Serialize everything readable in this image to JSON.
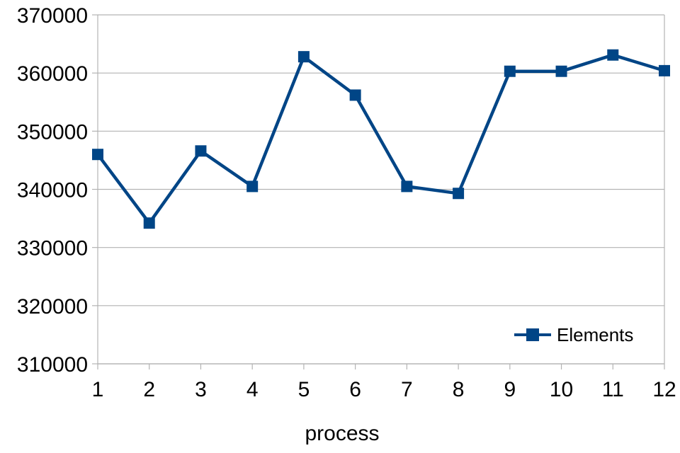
{
  "chart_data": {
    "type": "line",
    "title": "",
    "xlabel": "process",
    "ylabel": "",
    "categories": [
      "1",
      "2",
      "3",
      "4",
      "5",
      "6",
      "7",
      "8",
      "9",
      "10",
      "11",
      "12"
    ],
    "series": [
      {
        "name": "Elements",
        "values": [
          346000,
          334200,
          346600,
          340500,
          362800,
          356200,
          340500,
          339300,
          360300,
          360300,
          363100,
          360400
        ]
      }
    ],
    "ylim": [
      310000,
      370000
    ],
    "yticks": [
      310000,
      320000,
      330000,
      340000,
      350000,
      360000,
      370000
    ],
    "grid": true,
    "legend_position": "bottom-right",
    "colors": {
      "series": "#004586",
      "grid": "#b3b3b3",
      "axis": "#b3b3b3"
    }
  }
}
